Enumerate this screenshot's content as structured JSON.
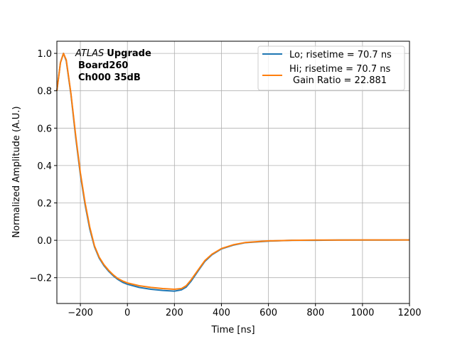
{
  "chart_data": {
    "type": "line",
    "xlabel": "Time [ns]",
    "ylabel": "Normalized Amplitude (A.U.)",
    "xlim": [
      -300,
      1200
    ],
    "ylim": [
      -0.338,
      1.065
    ],
    "xticks": [
      -200,
      0,
      200,
      400,
      600,
      800,
      1000,
      1200
    ],
    "xtick_labels": [
      "−200",
      "0",
      "200",
      "400",
      "600",
      "800",
      "1000",
      "1200"
    ],
    "yticks": [
      -0.2,
      0.0,
      0.2,
      0.4,
      0.6,
      0.8,
      1.0
    ],
    "ytick_labels": [
      "−0.2",
      "0.0",
      "0.2",
      "0.4",
      "0.6",
      "0.8",
      "1.0"
    ],
    "grid": true,
    "legend_position": "top-right",
    "annotation": {
      "italic": "ATLAS",
      "bold": "Upgrade",
      "line2": "Board260",
      "line3": "Ch000 35dB"
    },
    "series": [
      {
        "name": "Lo; risetime = 70.7 ns",
        "color": "#1f77b4",
        "x": [
          -300,
          -285,
          -272,
          -260,
          -240,
          -220,
          -200,
          -180,
          -160,
          -140,
          -120,
          -100,
          -80,
          -60,
          -40,
          -20,
          0,
          50,
          100,
          150,
          200,
          230,
          250,
          270,
          300,
          330,
          360,
          400,
          450,
          500,
          600,
          700,
          800,
          900,
          1000,
          1100,
          1200
        ],
        "y": [
          0.8,
          0.95,
          1.0,
          0.96,
          0.78,
          0.55,
          0.35,
          0.19,
          0.06,
          -0.035,
          -0.095,
          -0.135,
          -0.165,
          -0.19,
          -0.21,
          -0.225,
          -0.235,
          -0.252,
          -0.262,
          -0.268,
          -0.272,
          -0.265,
          -0.25,
          -0.22,
          -0.165,
          -0.112,
          -0.077,
          -0.046,
          -0.026,
          -0.013,
          -0.004,
          0.0,
          0.0,
          0.001,
          0.001,
          0.001,
          0.002
        ]
      },
      {
        "name": "Hi; risetime = 70.7 ns\n Gain Ratio = 22.881",
        "label_line1": "Hi; risetime = 70.7 ns",
        "label_line2": "Gain Ratio = 22.881",
        "color": "#ff7f0e",
        "x": [
          -300,
          -285,
          -272,
          -260,
          -240,
          -220,
          -200,
          -180,
          -160,
          -140,
          -120,
          -100,
          -80,
          -60,
          -40,
          -20,
          0,
          50,
          100,
          150,
          200,
          230,
          250,
          270,
          300,
          330,
          360,
          400,
          450,
          500,
          600,
          700,
          800,
          900,
          1000,
          1100,
          1200
        ],
        "y": [
          0.8,
          0.95,
          1.0,
          0.965,
          0.785,
          0.56,
          0.36,
          0.2,
          0.07,
          -0.03,
          -0.09,
          -0.13,
          -0.16,
          -0.185,
          -0.205,
          -0.218,
          -0.228,
          -0.243,
          -0.252,
          -0.258,
          -0.262,
          -0.258,
          -0.243,
          -0.213,
          -0.16,
          -0.108,
          -0.074,
          -0.044,
          -0.024,
          -0.012,
          -0.003,
          0.0,
          0.001,
          0.001,
          0.002,
          0.002,
          0.002
        ]
      }
    ]
  }
}
